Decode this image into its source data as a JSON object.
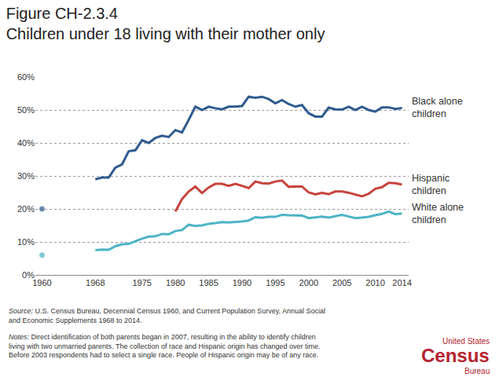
{
  "chart_data": {
    "type": "line",
    "title": "Figure CH-2.3.4\nChildren under 18 living with their mother only",
    "x": [
      1960,
      1961,
      1962,
      1963,
      1964,
      1965,
      1966,
      1967,
      1968,
      1969,
      1970,
      1971,
      1972,
      1973,
      1974,
      1975,
      1976,
      1977,
      1978,
      1979,
      1980,
      1981,
      1982,
      1983,
      1984,
      1985,
      1986,
      1987,
      1988,
      1989,
      1990,
      1991,
      1992,
      1993,
      1994,
      1995,
      1996,
      1997,
      1998,
      1999,
      2000,
      2001,
      2002,
      2003,
      2004,
      2005,
      2006,
      2007,
      2008,
      2009,
      2010,
      2011,
      2012,
      2013,
      2014
    ],
    "series": [
      {
        "name": "Black alone\nchildren",
        "color": "#2f5b8f",
        "values": [
          20,
          null,
          null,
          null,
          null,
          null,
          null,
          null,
          29,
          29.5,
          29.5,
          32.5,
          33.5,
          37.5,
          37.8,
          40.8,
          40,
          41.5,
          42.2,
          41.8,
          43.9,
          43.2,
          47,
          51,
          50,
          51,
          50.5,
          50.2,
          51,
          51,
          51.2,
          54,
          53.7,
          54,
          53.3,
          52,
          53,
          51.8,
          51,
          51.5,
          49,
          48,
          48,
          50.7,
          50.2,
          50.1,
          51,
          50,
          51,
          50,
          49.5,
          50.8,
          50.8,
          50.3,
          50.6
        ]
      },
      {
        "name": "Hispanic\nchildren",
        "color": "#c8443d",
        "values": [
          null,
          null,
          null,
          null,
          null,
          null,
          null,
          null,
          null,
          null,
          null,
          null,
          null,
          null,
          null,
          null,
          null,
          null,
          null,
          null,
          19.2,
          23,
          25.3,
          26.8,
          24.8,
          26.5,
          27.6,
          27.6,
          27,
          27.6,
          27,
          26.3,
          28.3,
          27.8,
          27.7,
          28.3,
          28.6,
          26.7,
          26.8,
          26.8,
          25,
          24.4,
          24.9,
          24.5,
          25.3,
          25.3,
          24.9,
          24.3,
          23.8,
          24.6,
          26.1,
          26.6,
          27.9,
          27.8,
          27.4
        ]
      },
      {
        "name": "White alone\nchildren",
        "color": "#4db4c6",
        "values": [
          6,
          null,
          null,
          null,
          null,
          null,
          null,
          null,
          7.5,
          7.7,
          7.6,
          8.7,
          9.3,
          9.4,
          10.2,
          11,
          11.6,
          11.7,
          12.4,
          12.3,
          13.3,
          13.6,
          15.2,
          14.8,
          15,
          15.5,
          15.7,
          16,
          15.9,
          16,
          16.2,
          16.5,
          17.5,
          17.3,
          17.6,
          17.6,
          18.2,
          18.1,
          18,
          18,
          17.2,
          17.4,
          17.7,
          17.4,
          17.8,
          18.2,
          17.7,
          17.2,
          17.4,
          17.6,
          18.1,
          18.5,
          19.2,
          18.4,
          18.6
        ]
      }
    ],
    "xlim": [
      1959,
      2015
    ],
    "xticks": [
      1960,
      1968,
      1975,
      1980,
      1985,
      1990,
      1995,
      2000,
      2005,
      2010,
      2014
    ],
    "ylim": [
      0,
      60
    ],
    "yticks": [
      {
        "value": 0,
        "label": "0%"
      },
      {
        "value": 10,
        "label": "10%"
      },
      {
        "value": 20,
        "label": "20%"
      },
      {
        "value": 30,
        "label": "30%"
      },
      {
        "value": 40,
        "label": "40%"
      },
      {
        "value": 50,
        "label": "50%"
      },
      {
        "value": 60,
        "label": "60%"
      }
    ],
    "grid": true,
    "source": [
      "Source: U.S. Census Bureau, Decennial Census 1960, and Current Population Survey, Annual Social",
      "and Economic Supplements 1968 to 2014."
    ],
    "notes": [
      "Notes: Direct identification of both parents began in 2007, resulting in the ability to identify children",
      "living with two unmarried parents. The collection of race and Hispanic origin has changed over time.",
      "Before 2003 respondents had to select a single race. People of Hispanic origin may be of any race."
    ],
    "logo": [
      "United States",
      "Census",
      "Bureau"
    ]
  }
}
